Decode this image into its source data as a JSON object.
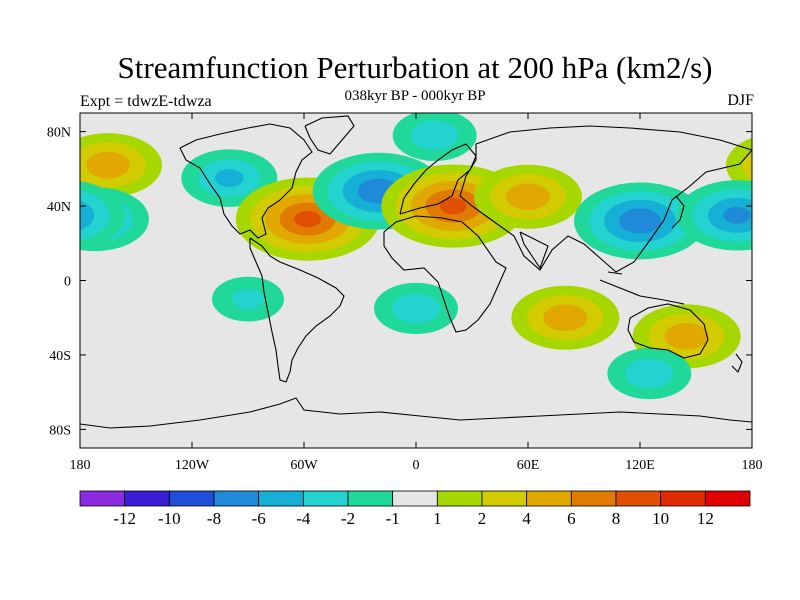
{
  "chart_data": {
    "type": "contour-map",
    "title": "Streamfunction Perturbation at 200 hPa (km2/s)",
    "subtitle": "038kyr BP - 000kyr BP",
    "left_label": "Expt = tdwzE-tdwza",
    "right_label": "DJF",
    "projection": "cylindrical-equidistant",
    "lon_range": [
      -180,
      180
    ],
    "lat_range": [
      -90,
      90
    ],
    "x_ticks": [
      {
        "value": -180,
        "label": "180"
      },
      {
        "value": -120,
        "label": "120W"
      },
      {
        "value": -60,
        "label": "60W"
      },
      {
        "value": 0,
        "label": "0"
      },
      {
        "value": 60,
        "label": "60E"
      },
      {
        "value": 120,
        "label": "120E"
      },
      {
        "value": 180,
        "label": "180"
      }
    ],
    "y_ticks": [
      {
        "value": 80,
        "label": "80N"
      },
      {
        "value": 40,
        "label": "40N"
      },
      {
        "value": 0,
        "label": "0"
      },
      {
        "value": -40,
        "label": "40S"
      },
      {
        "value": -80,
        "label": "80S"
      }
    ],
    "colorbar": {
      "boundaries": [
        -14,
        -12,
        -10,
        -8,
        -6,
        -4,
        -2,
        -1,
        1,
        2,
        4,
        6,
        8,
        10,
        12,
        14
      ],
      "labels": [
        "-12",
        "-10",
        "-8",
        "-6",
        "-4",
        "-2",
        "-1",
        "1",
        "2",
        "4",
        "6",
        "8",
        "10",
        "12"
      ],
      "colors": [
        "#8a2be2",
        "#3a1fd6",
        "#1f4fd8",
        "#1f8ad8",
        "#16b0d6",
        "#22d3d0",
        "#20d89a",
        "#e6e6e6",
        "#a6d800",
        "#d2cb00",
        "#e0a800",
        "#e07a00",
        "#e05000",
        "#e02a00",
        "#e00000"
      ]
    },
    "anomaly_centers": [
      {
        "name": "north-pacific-high",
        "lon": -165,
        "lat": 62,
        "value": 5
      },
      {
        "name": "east-pacific-low",
        "lon": -172,
        "lat": 33,
        "value": -5
      },
      {
        "name": "north-america-low",
        "lon": -100,
        "lat": 55,
        "value": -4
      },
      {
        "name": "atlantic-high",
        "lon": -58,
        "lat": 33,
        "value": 8
      },
      {
        "name": "north-atlantic-low",
        "lon": -20,
        "lat": 48,
        "value": -7
      },
      {
        "name": "eurasia-high",
        "lon": 20,
        "lat": 40,
        "value": 8
      },
      {
        "name": "central-asia-high",
        "lon": 60,
        "lat": 45,
        "value": 5
      },
      {
        "name": "arctic-low",
        "lon": 10,
        "lat": 78,
        "value": -3
      },
      {
        "name": "west-pacific-low",
        "lon": 120,
        "lat": 32,
        "value": -7
      },
      {
        "name": "pacific-low",
        "lon": 172,
        "lat": 35,
        "value": -6
      },
      {
        "name": "south-atlantic-low",
        "lon": 0,
        "lat": -15,
        "value": -3
      },
      {
        "name": "indian-ocean-high",
        "lon": 80,
        "lat": -20,
        "value": 5
      },
      {
        "name": "south-pacific-high",
        "lon": 145,
        "lat": -30,
        "value": 5
      },
      {
        "name": "south-indian-low",
        "lon": 125,
        "lat": -50,
        "value": -3
      },
      {
        "name": "south-pacific-low",
        "lon": -90,
        "lat": -10,
        "value": -2
      }
    ]
  }
}
